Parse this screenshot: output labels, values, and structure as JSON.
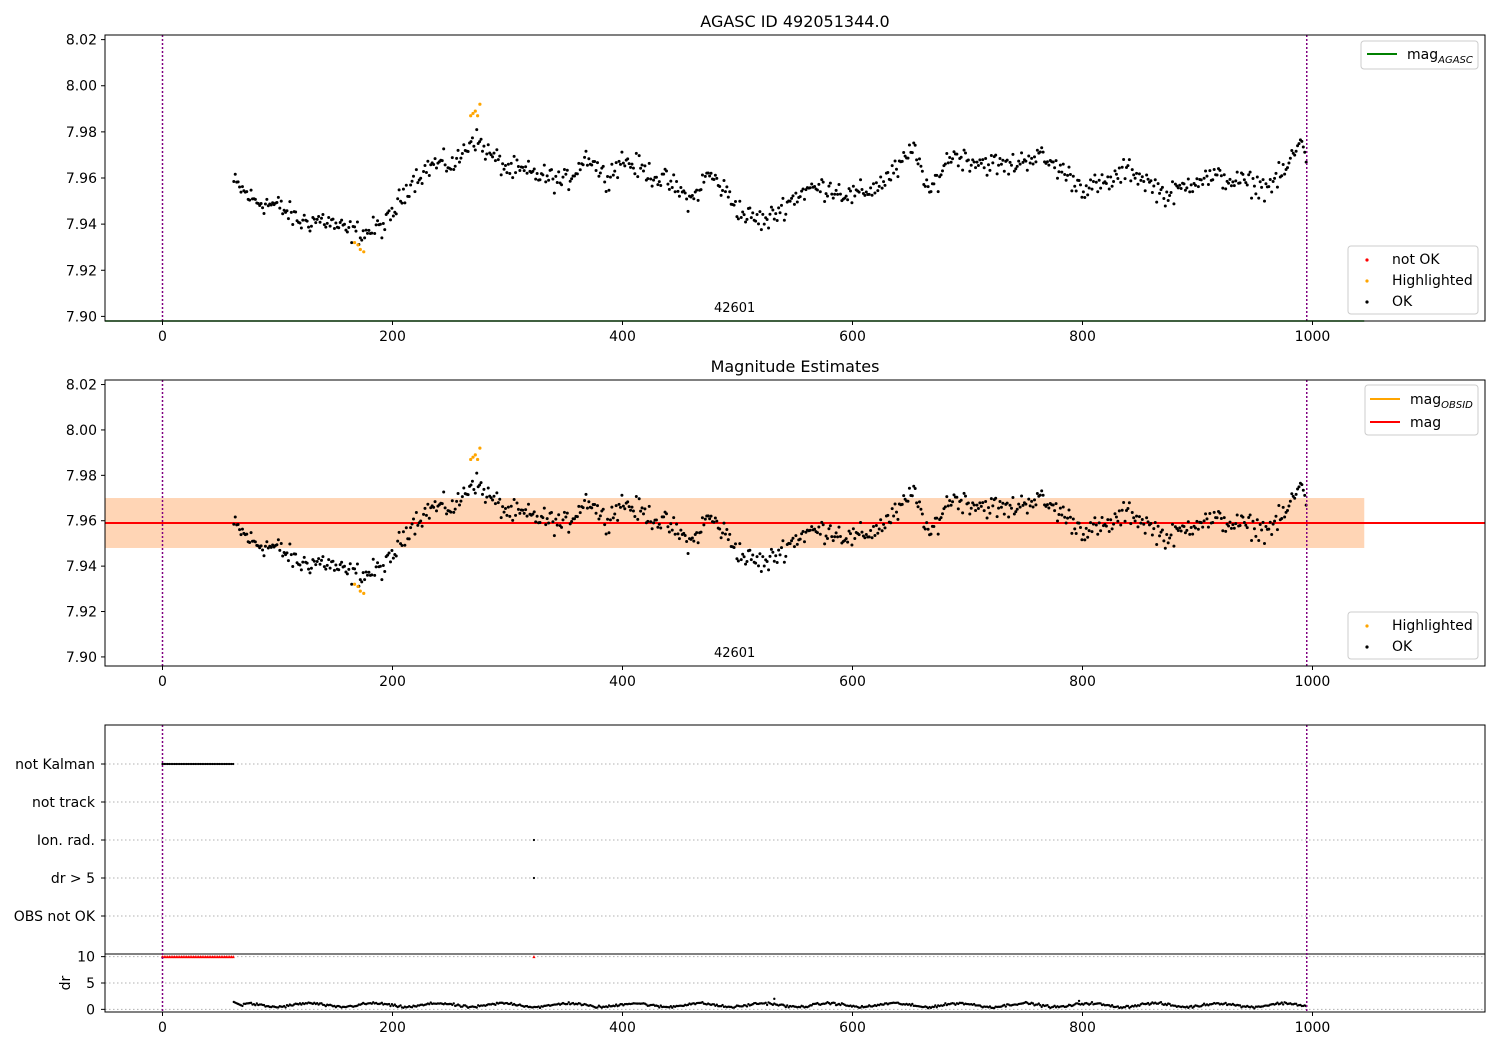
{
  "chart_data": [
    {
      "type": "scatter",
      "title": "AGASC ID 492051344.0",
      "xlim": [
        -50,
        1150
      ],
      "ylim": [
        7.898,
        8.022
      ],
      "xticks": [
        0,
        200,
        400,
        600,
        800,
        1000
      ],
      "yticks": [
        7.9,
        7.92,
        7.94,
        7.96,
        7.98,
        8.0,
        8.02
      ],
      "ytick_labels": [
        "7.90",
        "7.92",
        "7.94",
        "7.96",
        "7.98",
        "8.00",
        "8.02"
      ],
      "obsid_label": "42601",
      "obs_boundaries": [
        0,
        995
      ],
      "agasc_line": {
        "value": 7.898,
        "x_range": [
          -50,
          1045
        ],
        "color": "#008000"
      },
      "legend_lines": [
        {
          "label": "mag",
          "sub": "AGASC",
          "color": "#008000"
        }
      ],
      "legend_points": [
        {
          "label": "not OK",
          "color": "#ff0000"
        },
        {
          "label": "Highlighted",
          "color": "#ffa500"
        },
        {
          "label": "OK",
          "color": "#000000"
        }
      ],
      "highlighted": [
        [
          167,
          7.932
        ],
        [
          170,
          7.931
        ],
        [
          172,
          7.929
        ],
        [
          175,
          7.928
        ],
        [
          268,
          7.987
        ],
        [
          270,
          7.988
        ],
        [
          272,
          7.989
        ],
        [
          274,
          7.987
        ],
        [
          276,
          7.992
        ]
      ],
      "not_ok": []
    },
    {
      "type": "scatter",
      "title": "Magnitude Estimates",
      "xlim": [
        -50,
        1150
      ],
      "ylim": [
        7.896,
        8.022
      ],
      "xticks": [
        0,
        200,
        400,
        600,
        800,
        1000
      ],
      "yticks": [
        7.9,
        7.92,
        7.94,
        7.96,
        7.98,
        8.0,
        8.02
      ],
      "ytick_labels": [
        "7.90",
        "7.92",
        "7.94",
        "7.96",
        "7.98",
        "8.00",
        "8.02"
      ],
      "obsid_label": "42601",
      "obs_boundaries": [
        0,
        995
      ],
      "mag_line": {
        "value": 7.959,
        "color": "#ff0000"
      },
      "mag_band": {
        "low": 7.948,
        "high": 7.97,
        "x_range": [
          -50,
          1045
        ],
        "color": "#ffc0cb"
      },
      "mag_obsid_band": {
        "low": 7.948,
        "high": 7.97,
        "x_range": [
          -50,
          1045
        ],
        "color": "#ffa500"
      },
      "legend_lines": [
        {
          "label": "mag",
          "sub": "OBSID",
          "color": "#ffa500"
        },
        {
          "label": "mag",
          "sub": "",
          "color": "#ff0000"
        }
      ],
      "legend_points": [
        {
          "label": "Highlighted",
          "color": "#ffa500"
        },
        {
          "label": "OK",
          "color": "#000000"
        }
      ],
      "highlighted": [
        [
          167,
          7.932
        ],
        [
          170,
          7.931
        ],
        [
          172,
          7.929
        ],
        [
          175,
          7.928
        ],
        [
          268,
          7.987
        ],
        [
          270,
          7.988
        ],
        [
          272,
          7.989
        ],
        [
          274,
          7.987
        ],
        [
          276,
          7.992
        ]
      ]
    },
    {
      "type": "scatter",
      "title": "",
      "xlim": [
        -50,
        1150
      ],
      "xticks": [
        0,
        200,
        400,
        600,
        800,
        1000
      ],
      "flag_rows": [
        "not Kalman",
        "not track",
        "Ion. rad.",
        "dr > 5",
        "OBS not OK"
      ],
      "flags": {
        "not Kalman": {
          "x_range": [
            0,
            62
          ]
        },
        "Ion. rad.": {
          "points": [
            323
          ]
        },
        "dr > 5": {
          "points": [
            323
          ]
        }
      },
      "dr": {
        "ylabel": "dr",
        "yticks": [
          0,
          5,
          10
        ],
        "ylim": [
          -0.5,
          10.5
        ],
        "red_markers_x_range": [
          0,
          62
        ],
        "red_marker_single": 323,
        "outliers": [
          [
            532,
            2.0
          ],
          [
            797,
            1.6
          ]
        ],
        "baseline": 0.8
      }
    }
  ]
}
